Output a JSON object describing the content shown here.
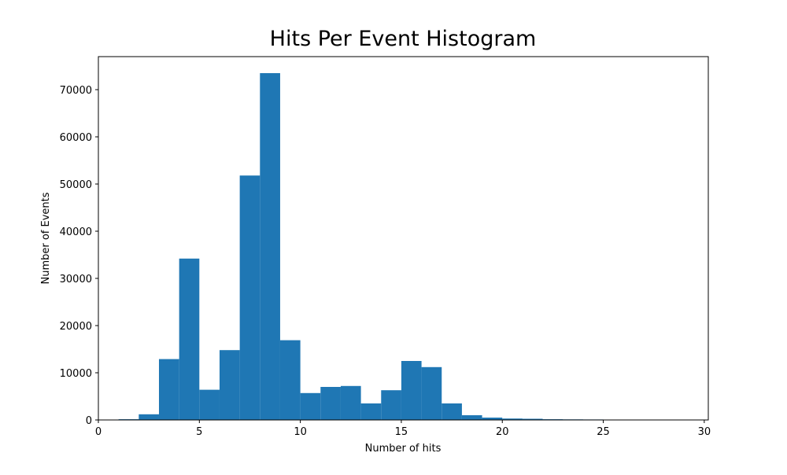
{
  "chart_data": {
    "type": "bar",
    "title": "Hits Per Event Histogram",
    "xlabel": "Number of hits",
    "ylabel": "Number of Events",
    "xlim": [
      0,
      30.2
    ],
    "ylim": [
      0,
      77000
    ],
    "xticks": [
      0,
      5,
      10,
      15,
      20,
      25,
      30
    ],
    "yticks": [
      0,
      10000,
      20000,
      30000,
      40000,
      50000,
      60000,
      70000
    ],
    "grid": false,
    "bar_color": "#1f77b4",
    "bins": [
      {
        "x0": 1.0,
        "x1": 2.0,
        "value": 150
      },
      {
        "x0": 2.0,
        "x1": 3.0,
        "value": 1200
      },
      {
        "x0": 3.0,
        "x1": 4.0,
        "value": 12900
      },
      {
        "x0": 4.0,
        "x1": 5.0,
        "value": 34200
      },
      {
        "x0": 5.0,
        "x1": 6.0,
        "value": 6400
      },
      {
        "x0": 6.0,
        "x1": 7.0,
        "value": 14800
      },
      {
        "x0": 7.0,
        "x1": 8.0,
        "value": 51800
      },
      {
        "x0": 8.0,
        "x1": 9.0,
        "value": 73500
      },
      {
        "x0": 9.0,
        "x1": 10.0,
        "value": 16900
      },
      {
        "x0": 10.0,
        "x1": 11.0,
        "value": 5700
      },
      {
        "x0": 11.0,
        "x1": 12.0,
        "value": 7000
      },
      {
        "x0": 12.0,
        "x1": 13.0,
        "value": 7200
      },
      {
        "x0": 13.0,
        "x1": 14.0,
        "value": 3500
      },
      {
        "x0": 14.0,
        "x1": 15.0,
        "value": 6300
      },
      {
        "x0": 15.0,
        "x1": 16.0,
        "value": 12500
      },
      {
        "x0": 16.0,
        "x1": 17.0,
        "value": 11200
      },
      {
        "x0": 17.0,
        "x1": 18.0,
        "value": 3500
      },
      {
        "x0": 18.0,
        "x1": 19.0,
        "value": 1000
      },
      {
        "x0": 19.0,
        "x1": 20.0,
        "value": 500
      },
      {
        "x0": 20.0,
        "x1": 21.0,
        "value": 300
      },
      {
        "x0": 21.0,
        "x1": 22.0,
        "value": 250
      },
      {
        "x0": 22.0,
        "x1": 23.0,
        "value": 150
      },
      {
        "x0": 23.0,
        "x1": 24.0,
        "value": 120
      },
      {
        "x0": 24.0,
        "x1": 25.0,
        "value": 100
      },
      {
        "x0": 25.0,
        "x1": 26.0,
        "value": 80
      },
      {
        "x0": 26.0,
        "x1": 27.0,
        "value": 40
      },
      {
        "x0": 27.0,
        "x1": 28.0,
        "value": 30
      },
      {
        "x0": 28.0,
        "x1": 29.0,
        "value": 20
      }
    ]
  }
}
